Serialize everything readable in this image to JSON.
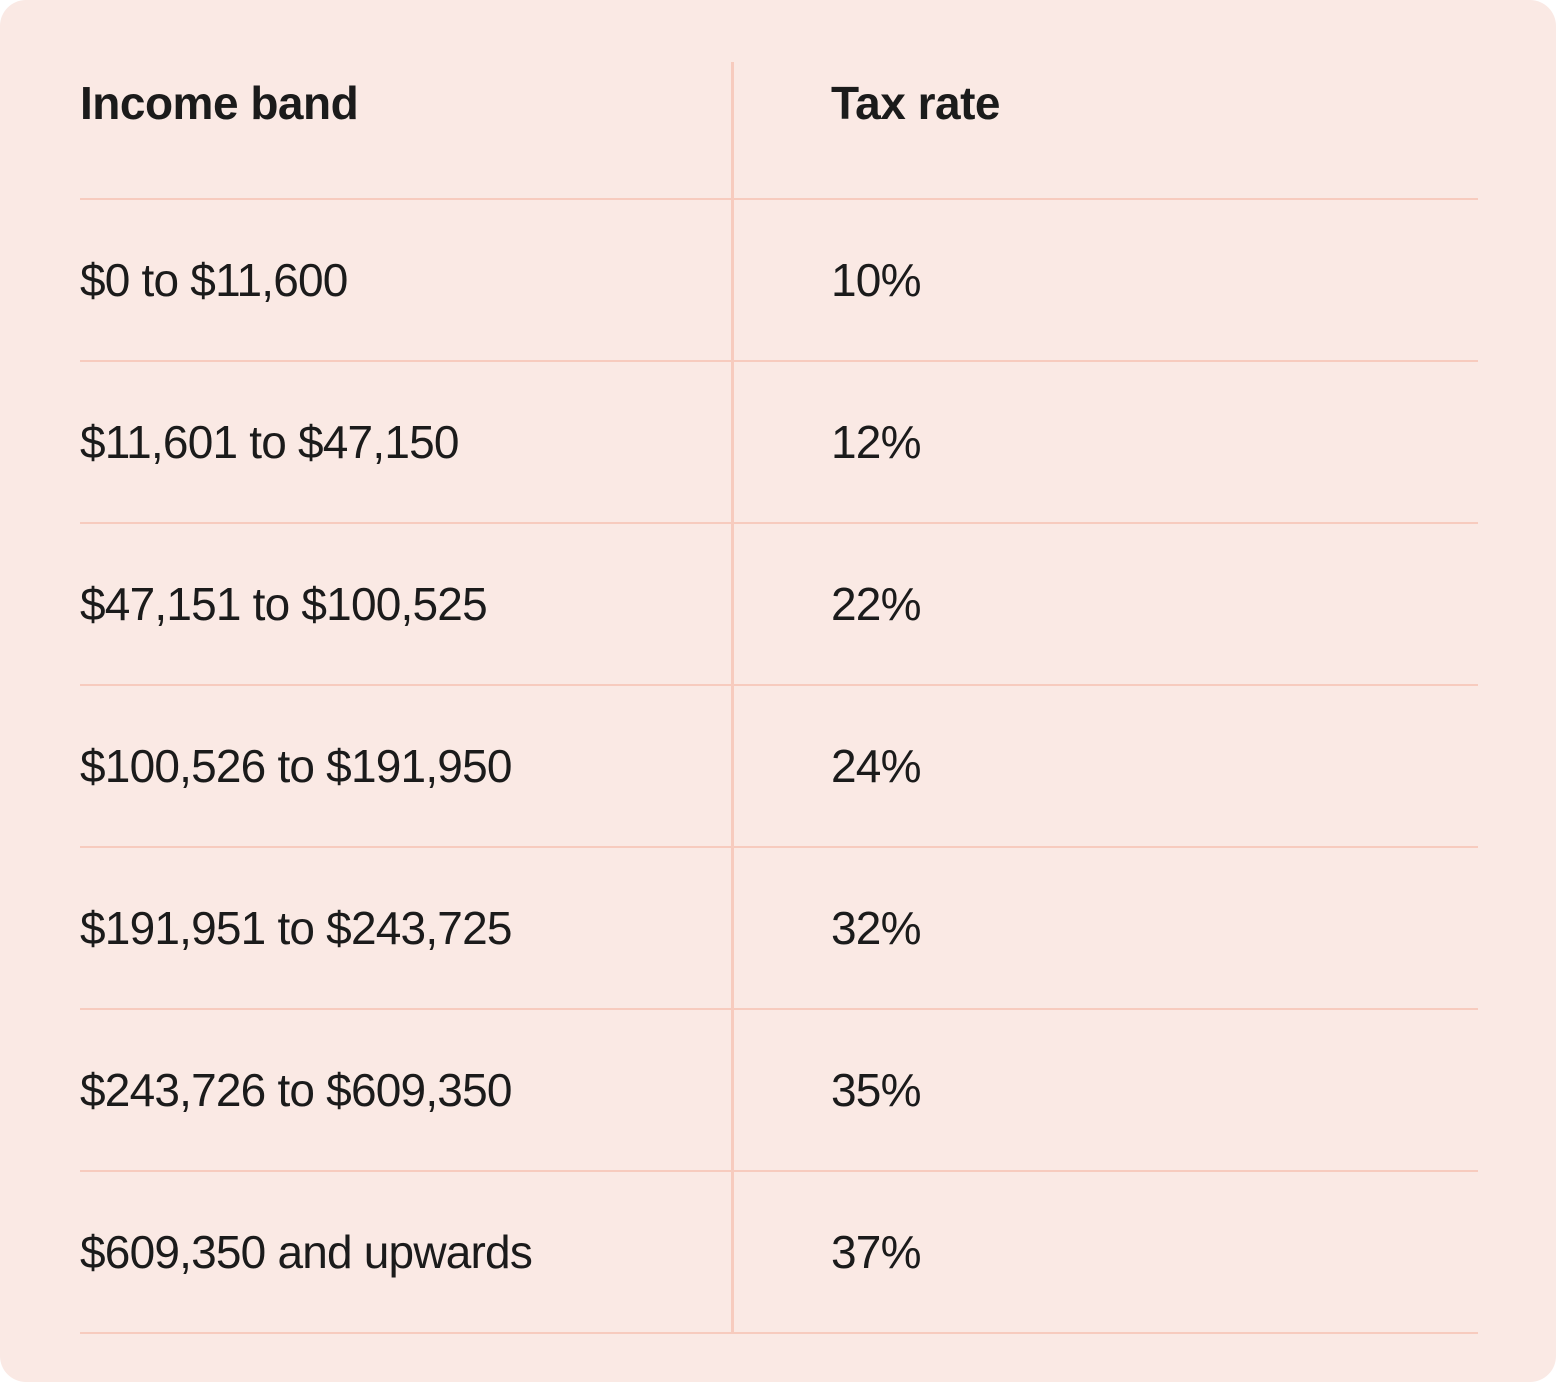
{
  "chart_data": {
    "type": "table",
    "columns": [
      "Income band",
      "Tax rate"
    ],
    "rows": [
      [
        "$0 to $11,600",
        "10%"
      ],
      [
        "$11,601 to $47,150",
        "12%"
      ],
      [
        "$47,151 to $100,525",
        "22%"
      ],
      [
        "$100,526 to $191,950",
        "24%"
      ],
      [
        "$191,951 to $243,725",
        "32%"
      ],
      [
        "$243,726 to $609,350",
        "35%"
      ],
      [
        "$609,350 and upwards",
        "37%"
      ]
    ]
  },
  "table": {
    "header": {
      "income_band": "Income band",
      "tax_rate": "Tax rate"
    },
    "rows": [
      {
        "income_band": "$0 to $11,600",
        "tax_rate": "10%"
      },
      {
        "income_band": "$11,601 to $47,150",
        "tax_rate": "12%"
      },
      {
        "income_band": "$47,151 to $100,525",
        "tax_rate": "22%"
      },
      {
        "income_band": "$100,526 to $191,950",
        "tax_rate": "24%"
      },
      {
        "income_band": "$191,951 to $243,725",
        "tax_rate": "32%"
      },
      {
        "income_band": "$243,726 to $609,350",
        "tax_rate": "35%"
      },
      {
        "income_band": "$609,350 and upwards",
        "tax_rate": "37%"
      }
    ]
  },
  "colors": {
    "page_bg": "#FFFFFF",
    "card_bg": "#FAE9E4",
    "divider": "#F7CBBE",
    "text": "#1B1B1B"
  }
}
